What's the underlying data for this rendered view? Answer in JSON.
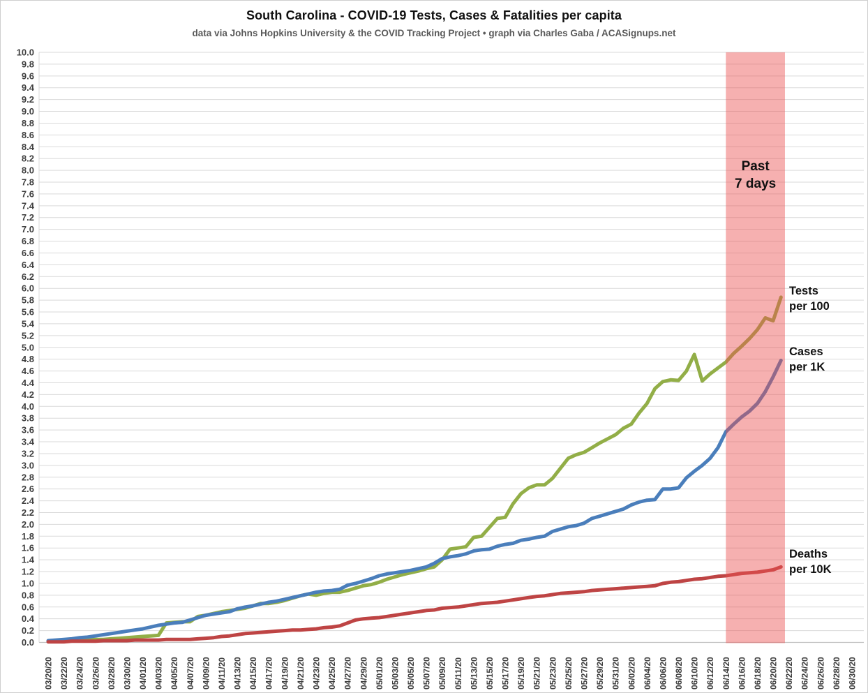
{
  "header": {
    "title": "South Carolina - COVID-19 Tests, Cases & Fatalities per capita",
    "subtitle": "data via Johns Hopkins University & the COVID Tracking Project • graph via Charles Gaba / ACASignups.net"
  },
  "colors": {
    "gridline": "#d9d9d9",
    "axis_line": "#bfbfbf",
    "tick_label": "#3f3f3f",
    "annotation_text": "#111111",
    "band_fill": "rgba(235,80,80,0.45)"
  },
  "chart_data": {
    "type": "line",
    "title": "South Carolina - COVID-19 Tests, Cases & Fatalities per capita",
    "subtitle": "data via Johns Hopkins University & the COVID Tracking Project • graph via Charles Gaba / ACASignups.net",
    "grid": true,
    "ylim": [
      0.0,
      10.0
    ],
    "ytick_step": 0.2,
    "x_axis_range": [
      "03/20/20",
      "06/30/20"
    ],
    "x_tick_labels": [
      "03/20/20",
      "03/22/20",
      "03/24/20",
      "03/26/20",
      "03/28/20",
      "03/30/20",
      "04/01/20",
      "04/03/20",
      "04/05/20",
      "04/07/20",
      "04/09/20",
      "04/11/20",
      "04/13/20",
      "04/15/20",
      "04/17/20",
      "04/19/20",
      "04/21/20",
      "04/23/20",
      "04/25/20",
      "04/27/20",
      "04/29/20",
      "05/01/20",
      "05/03/20",
      "05/05/20",
      "05/07/20",
      "05/09/20",
      "05/11/20",
      "05/13/20",
      "05/15/20",
      "05/17/20",
      "05/19/20",
      "05/21/20",
      "05/23/20",
      "05/25/20",
      "05/27/20",
      "05/29/20",
      "05/31/20",
      "06/02/20",
      "06/04/20",
      "06/06/20",
      "06/08/20",
      "06/10/20",
      "06/12/20",
      "06/14/20",
      "06/16/20",
      "06/18/20",
      "06/20/20",
      "06/22/20",
      "06/24/20",
      "06/26/20",
      "06/28/20",
      "06/30/20"
    ],
    "x": [
      "03/20/20",
      "03/21/20",
      "03/22/20",
      "03/23/20",
      "03/24/20",
      "03/25/20",
      "03/26/20",
      "03/27/20",
      "03/28/20",
      "03/29/20",
      "03/30/20",
      "03/31/20",
      "04/01/20",
      "04/02/20",
      "04/03/20",
      "04/04/20",
      "04/05/20",
      "04/06/20",
      "04/07/20",
      "04/08/20",
      "04/09/20",
      "04/10/20",
      "04/11/20",
      "04/12/20",
      "04/13/20",
      "04/14/20",
      "04/15/20",
      "04/16/20",
      "04/17/20",
      "04/18/20",
      "04/19/20",
      "04/20/20",
      "04/21/20",
      "04/22/20",
      "04/23/20",
      "04/24/20",
      "04/25/20",
      "04/26/20",
      "04/27/20",
      "04/28/20",
      "04/29/20",
      "04/30/20",
      "05/01/20",
      "05/02/20",
      "05/03/20",
      "05/04/20",
      "05/05/20",
      "05/06/20",
      "05/07/20",
      "05/08/20",
      "05/09/20",
      "05/10/20",
      "05/11/20",
      "05/12/20",
      "05/13/20",
      "05/14/20",
      "05/15/20",
      "05/16/20",
      "05/17/20",
      "05/18/20",
      "05/19/20",
      "05/20/20",
      "05/21/20",
      "05/22/20",
      "05/23/20",
      "05/24/20",
      "05/25/20",
      "05/26/20",
      "05/27/20",
      "05/28/20",
      "05/29/20",
      "05/30/20",
      "05/31/20",
      "06/01/20",
      "06/02/20",
      "06/03/20",
      "06/04/20",
      "06/05/20",
      "06/06/20",
      "06/07/20",
      "06/08/20",
      "06/09/20",
      "06/10/20",
      "06/11/20",
      "06/12/20",
      "06/13/20",
      "06/14/20",
      "06/15/20",
      "06/16/20",
      "06/17/20",
      "06/18/20",
      "06/19/20",
      "06/20/20",
      "06/21/20"
    ],
    "series": [
      {
        "name": "Tests per 100",
        "label_lines": [
          "Tests",
          "per 100"
        ],
        "color": "#92ae47",
        "values": [
          0.02,
          0.02,
          0.03,
          0.03,
          0.04,
          0.04,
          0.05,
          0.05,
          0.06,
          0.07,
          0.08,
          0.09,
          0.1,
          0.11,
          0.12,
          0.33,
          0.34,
          0.35,
          0.35,
          0.44,
          0.46,
          0.49,
          0.52,
          0.54,
          0.56,
          0.58,
          0.62,
          0.66,
          0.66,
          0.68,
          0.71,
          0.75,
          0.79,
          0.82,
          0.8,
          0.83,
          0.85,
          0.85,
          0.88,
          0.92,
          0.96,
          0.98,
          1.02,
          1.07,
          1.11,
          1.15,
          1.18,
          1.21,
          1.25,
          1.28,
          1.4,
          1.58,
          1.6,
          1.62,
          1.78,
          1.8,
          1.95,
          2.1,
          2.12,
          2.35,
          2.52,
          2.62,
          2.67,
          2.67,
          2.78,
          2.95,
          3.12,
          3.18,
          3.22,
          3.3,
          3.38,
          3.45,
          3.52,
          3.63,
          3.7,
          3.89,
          4.05,
          4.3,
          4.42,
          4.45,
          4.44,
          4.6,
          4.88,
          4.43,
          4.55,
          4.65,
          4.75,
          4.9,
          5.02,
          5.15,
          5.3,
          5.5,
          5.45,
          5.85
        ]
      },
      {
        "name": "Cases per 1K",
        "label_lines": [
          "Cases",
          "per 1K"
        ],
        "color": "#4a7ebb",
        "values": [
          0.03,
          0.04,
          0.05,
          0.06,
          0.08,
          0.09,
          0.11,
          0.13,
          0.15,
          0.17,
          0.19,
          0.21,
          0.23,
          0.26,
          0.29,
          0.31,
          0.33,
          0.34,
          0.38,
          0.42,
          0.46,
          0.48,
          0.5,
          0.52,
          0.57,
          0.6,
          0.62,
          0.65,
          0.68,
          0.7,
          0.73,
          0.76,
          0.79,
          0.82,
          0.85,
          0.87,
          0.88,
          0.9,
          0.97,
          1.0,
          1.04,
          1.08,
          1.13,
          1.16,
          1.18,
          1.2,
          1.22,
          1.25,
          1.28,
          1.34,
          1.42,
          1.45,
          1.47,
          1.5,
          1.55,
          1.57,
          1.58,
          1.63,
          1.66,
          1.68,
          1.73,
          1.75,
          1.78,
          1.8,
          1.88,
          1.92,
          1.96,
          1.98,
          2.02,
          2.1,
          2.14,
          2.18,
          2.22,
          2.26,
          2.33,
          2.38,
          2.41,
          2.42,
          2.6,
          2.6,
          2.62,
          2.79,
          2.9,
          3.0,
          3.12,
          3.3,
          3.57,
          3.7,
          3.82,
          3.92,
          4.05,
          4.25,
          4.5,
          4.78
        ]
      },
      {
        "name": "Deaths per 10K",
        "label_lines": [
          "Deaths",
          "per 10K"
        ],
        "color": "#be4444",
        "values": [
          0.01,
          0.01,
          0.01,
          0.02,
          0.02,
          0.02,
          0.02,
          0.03,
          0.03,
          0.03,
          0.03,
          0.04,
          0.04,
          0.04,
          0.04,
          0.05,
          0.05,
          0.05,
          0.05,
          0.06,
          0.07,
          0.08,
          0.1,
          0.11,
          0.13,
          0.15,
          0.16,
          0.17,
          0.18,
          0.19,
          0.2,
          0.21,
          0.21,
          0.22,
          0.23,
          0.25,
          0.26,
          0.28,
          0.33,
          0.38,
          0.4,
          0.41,
          0.42,
          0.44,
          0.46,
          0.48,
          0.5,
          0.52,
          0.54,
          0.55,
          0.58,
          0.59,
          0.6,
          0.62,
          0.64,
          0.66,
          0.67,
          0.68,
          0.7,
          0.72,
          0.74,
          0.76,
          0.78,
          0.79,
          0.81,
          0.83,
          0.84,
          0.85,
          0.86,
          0.88,
          0.89,
          0.9,
          0.91,
          0.92,
          0.93,
          0.94,
          0.95,
          0.96,
          1.0,
          1.02,
          1.03,
          1.05,
          1.07,
          1.08,
          1.1,
          1.12,
          1.13,
          1.15,
          1.17,
          1.18,
          1.19,
          1.21,
          1.23,
          1.28
        ]
      }
    ],
    "highlight_band": {
      "label_lines": [
        "Past",
        "7 days"
      ],
      "start_date": "06/14/20",
      "end_date": "06/21/20"
    },
    "legend_position": "right-inline-labels"
  }
}
